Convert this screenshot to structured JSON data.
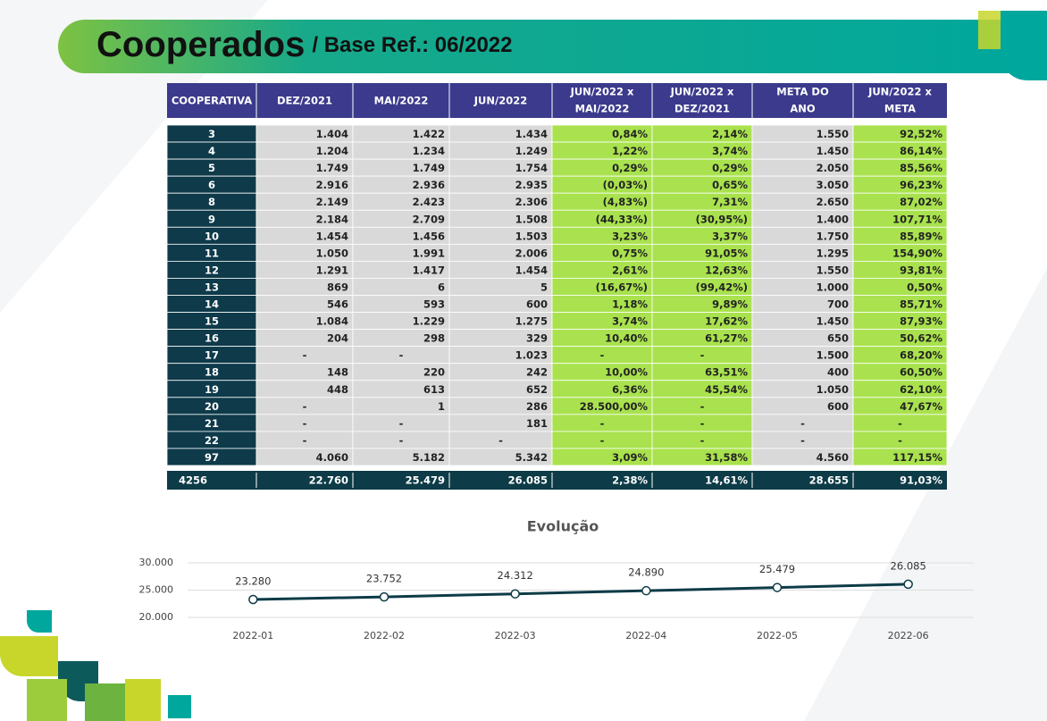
{
  "header": {
    "title": "Cooperados",
    "subtitle": "/ Base Ref.: 06/2022"
  },
  "table": {
    "columns": [
      [
        "COOPERATIVA"
      ],
      [
        "DEZ/2021"
      ],
      [
        "MAI/2022"
      ],
      [
        "JUN/2022"
      ],
      [
        "JUN/2022 x",
        "MAI/2022"
      ],
      [
        "JUN/2022 x",
        "DEZ/2021"
      ],
      [
        "META DO",
        "ANO"
      ],
      [
        "JUN/2022 x",
        "META"
      ]
    ],
    "rows": [
      [
        "3",
        "1.404",
        "1.422",
        "1.434",
        "0,84%",
        "2,14%",
        "1.550",
        "92,52%"
      ],
      [
        "4",
        "1.204",
        "1.234",
        "1.249",
        "1,22%",
        "3,74%",
        "1.450",
        "86,14%"
      ],
      [
        "5",
        "1.749",
        "1.749",
        "1.754",
        "0,29%",
        "0,29%",
        "2.050",
        "85,56%"
      ],
      [
        "6",
        "2.916",
        "2.936",
        "2.935",
        "(0,03%)",
        "0,65%",
        "3.050",
        "96,23%"
      ],
      [
        "8",
        "2.149",
        "2.423",
        "2.306",
        "(4,83%)",
        "7,31%",
        "2.650",
        "87,02%"
      ],
      [
        "9",
        "2.184",
        "2.709",
        "1.508",
        "(44,33%)",
        "(30,95%)",
        "1.400",
        "107,71%"
      ],
      [
        "10",
        "1.454",
        "1.456",
        "1.503",
        "3,23%",
        "3,37%",
        "1.750",
        "85,89%"
      ],
      [
        "11",
        "1.050",
        "1.991",
        "2.006",
        "0,75%",
        "91,05%",
        "1.295",
        "154,90%"
      ],
      [
        "12",
        "1.291",
        "1.417",
        "1.454",
        "2,61%",
        "12,63%",
        "1.550",
        "93,81%"
      ],
      [
        "13",
        "869",
        "6",
        "5",
        "(16,67%)",
        "(99,42%)",
        "1.000",
        "0,50%"
      ],
      [
        "14",
        "546",
        "593",
        "600",
        "1,18%",
        "9,89%",
        "700",
        "85,71%"
      ],
      [
        "15",
        "1.084",
        "1.229",
        "1.275",
        "3,74%",
        "17,62%",
        "1.450",
        "87,93%"
      ],
      [
        "16",
        "204",
        "298",
        "329",
        "10,40%",
        "61,27%",
        "650",
        "50,62%"
      ],
      [
        "17",
        "-",
        "-",
        "1.023",
        "-",
        "-",
        "1.500",
        "68,20%"
      ],
      [
        "18",
        "148",
        "220",
        "242",
        "10,00%",
        "63,51%",
        "400",
        "60,50%"
      ],
      [
        "19",
        "448",
        "613",
        "652",
        "6,36%",
        "45,54%",
        "1.050",
        "62,10%"
      ],
      [
        "20",
        "-",
        "1",
        "286",
        "28.500,00%",
        "-",
        "600",
        "47,67%"
      ],
      [
        "21",
        "-",
        "-",
        "181",
        "-",
        "-",
        "-",
        "-"
      ],
      [
        "22",
        "-",
        "-",
        "-",
        "-",
        "-",
        "-",
        "-"
      ],
      [
        "97",
        "4.060",
        "5.182",
        "5.342",
        "3,09%",
        "31,58%",
        "4.560",
        "117,15%"
      ]
    ],
    "total": [
      "4256",
      "22.760",
      "25.479",
      "26.085",
      "2,38%",
      "14,61%",
      "28.655",
      "91,03%"
    ]
  },
  "chart_data": {
    "type": "line",
    "title": "Evolução",
    "categories": [
      "2022-01",
      "2022-02",
      "2022-03",
      "2022-04",
      "2022-05",
      "2022-06"
    ],
    "values": [
      23280,
      23752,
      24312,
      24890,
      25479,
      26085
    ],
    "value_labels": [
      "23.280",
      "23.752",
      "24.312",
      "24.890",
      "25.479",
      "26.085"
    ],
    "color": "#0d3b47",
    "ylim": [
      20000,
      30000
    ],
    "yticks": [
      {
        "value": 20000,
        "label": "20.000"
      },
      {
        "value": 25000,
        "label": "25.000"
      },
      {
        "value": 30000,
        "label": "30.000"
      }
    ],
    "grid": true
  }
}
